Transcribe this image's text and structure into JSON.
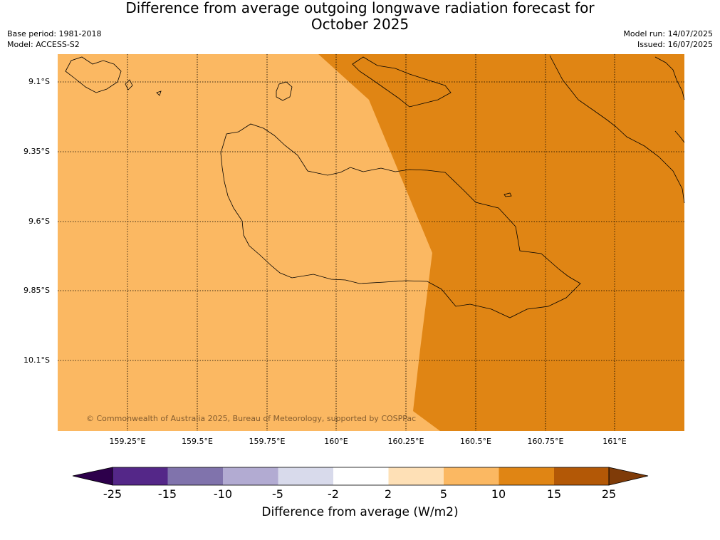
{
  "header": {
    "title_line1": "Difference from average outgoing longwave radiation forecast for",
    "title_line2": "October 2025",
    "base_period": "Base period: 1981-2018",
    "model": "Model: ACCESS-S2",
    "model_run": "Model run: 14/07/2025",
    "issued": "Issued: 16/07/2025"
  },
  "map": {
    "lat_labels": [
      "9.1°S",
      "9.35°S",
      "9.6°S",
      "9.85°S",
      "10.1°S"
    ],
    "lon_labels": [
      "159.25°E",
      "159.5°E",
      "159.75°E",
      "160°E",
      "160.25°E",
      "160.5°E",
      "160.75°E",
      "161°E"
    ],
    "copyright": "© Commonwealth of Australia 2025, Bureau of Meteorology, supported by COSPPac",
    "colors": {
      "band_5_10": "#fbb862",
      "band_10_15": "#e08514",
      "coastline": "#000000",
      "grid": "#000000"
    }
  },
  "colorbar": {
    "title": "Difference from average (W/m2)",
    "ticks": [
      "-25",
      "-15",
      "-10",
      "-5",
      "-2",
      "2",
      "5",
      "10",
      "15",
      "25"
    ],
    "colors": [
      "#2d004b",
      "#542788",
      "#8073ac",
      "#b2abd2",
      "#d8daeb",
      "#ffffff",
      "#fee0b6",
      "#fbb862",
      "#e08514",
      "#b35806",
      "#7f3b08"
    ]
  }
}
